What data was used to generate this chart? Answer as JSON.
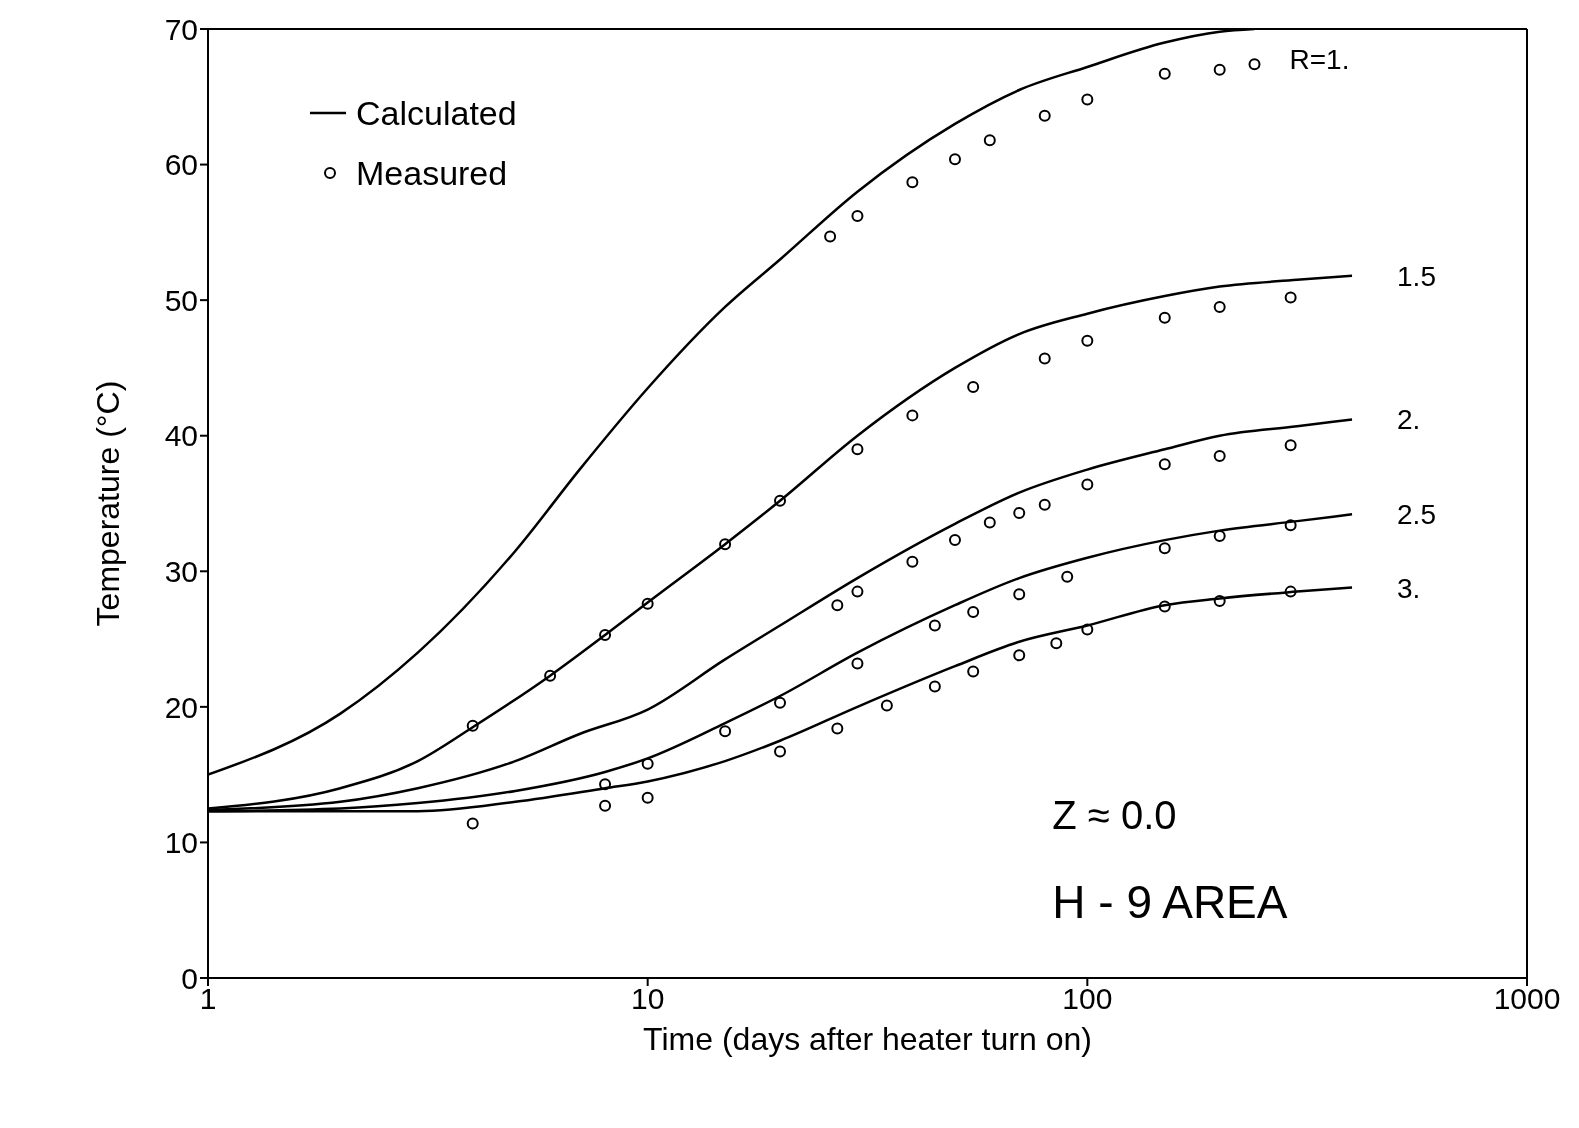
{
  "chart_data": {
    "type": "line",
    "xlabel": "Time (days after heater turn on)",
    "ylabel": "Temperature (°C)",
    "log": "x",
    "xlim": [
      1,
      1000
    ],
    "xticks": [
      1,
      10,
      100,
      1000
    ],
    "ylim": [
      0,
      70
    ],
    "yticks": [
      0,
      10,
      20,
      30,
      40,
      50,
      60,
      70
    ],
    "legend": "top left",
    "line_style": "solid",
    "series": [
      {
        "name": "R=1.",
        "color": "#000000",
        "x": [
          1,
          2,
          3,
          5,
          7,
          10,
          15,
          20,
          30,
          50,
          70,
          100,
          150,
          200,
          240
        ],
        "values": [
          15,
          19.5,
          24,
          31.5,
          37.5,
          43.5,
          49.5,
          53,
          58,
          63,
          65.5,
          67.2,
          69,
          69.8,
          70
        ]
      },
      {
        "name": "1.5",
        "color": "#000000",
        "x": [
          1,
          2,
          3,
          4,
          6,
          8,
          10,
          15,
          20,
          30,
          50,
          70,
          100,
          150,
          200,
          300,
          400
        ],
        "values": [
          12.5,
          14,
          16,
          18.5,
          22.3,
          25.3,
          27.7,
          32,
          35.2,
          40,
          45,
          47.5,
          49,
          50.3,
          51,
          51.5,
          51.8
        ]
      },
      {
        "name": "2.",
        "color": "#000000",
        "x": [
          1,
          2,
          3,
          5,
          7,
          10,
          15,
          20,
          30,
          50,
          70,
          100,
          150,
          200,
          300,
          400
        ],
        "values": [
          12.4,
          13,
          14,
          16,
          18,
          19.8,
          23.5,
          26,
          29.5,
          33.5,
          35.8,
          37.5,
          39,
          40,
          40.7,
          41.2
        ]
      },
      {
        "name": "2.5",
        "color": "#000000",
        "x": [
          1,
          2,
          3,
          5,
          8,
          10,
          15,
          20,
          30,
          50,
          70,
          100,
          150,
          200,
          300,
          400
        ],
        "values": [
          12.3,
          12.5,
          12.9,
          13.8,
          15.2,
          16.2,
          18.8,
          20.8,
          24,
          27.5,
          29.5,
          31,
          32.3,
          33,
          33.7,
          34.2
        ]
      },
      {
        "name": "3.",
        "color": "#000000",
        "x": [
          1,
          3,
          5,
          8,
          10,
          15,
          20,
          30,
          50,
          70,
          100,
          150,
          200,
          300,
          400
        ],
        "values": [
          12.3,
          12.3,
          13,
          14,
          14.5,
          16,
          17.5,
          20,
          23,
          24.8,
          26,
          27.5,
          28,
          28.5,
          28.8
        ]
      },
      {
        "name": "Measured",
        "type": "scatter",
        "color": "#000000",
        "marker": "circle",
        "x": [
          26,
          30,
          40,
          50,
          60,
          80,
          100,
          150,
          200,
          240
        ],
        "values": [
          54.7,
          56.2,
          58.7,
          60.4,
          61.8,
          63.6,
          64.8,
          66.7,
          67,
          67.4
        ]
      },
      {
        "type": "scatter",
        "color": "#000000",
        "marker": "circle",
        "x": [
          4,
          6,
          8,
          10,
          15,
          20,
          30,
          40,
          55,
          80,
          100,
          150,
          200,
          290
        ],
        "values": [
          18.6,
          22.3,
          25.3,
          27.6,
          32,
          35.2,
          39,
          41.5,
          43.6,
          45.7,
          47,
          48.7,
          49.5,
          50.2
        ]
      },
      {
        "type": "scatter",
        "color": "#000000",
        "marker": "circle",
        "x": [
          27,
          30,
          40,
          50,
          60,
          70,
          80,
          100,
          150,
          200,
          290
        ],
        "values": [
          27.5,
          28.5,
          30.7,
          32.3,
          33.6,
          34.3,
          34.9,
          36.4,
          37.9,
          38.5,
          39.3
        ]
      },
      {
        "type": "scatter",
        "color": "#000000",
        "marker": "circle",
        "x": [
          8,
          10,
          15,
          20,
          30,
          45,
          55,
          70,
          90,
          150,
          200,
          290
        ],
        "values": [
          14.3,
          15.8,
          18.2,
          20.3,
          23.2,
          26,
          27,
          28.3,
          29.6,
          31.7,
          32.6,
          33.4
        ]
      },
      {
        "type": "scatter",
        "color": "#000000",
        "marker": "circle",
        "x": [
          4,
          8,
          10,
          20,
          27,
          35,
          45,
          55,
          70,
          85,
          100,
          150,
          200,
          290
        ],
        "values": [
          11.4,
          12.7,
          13.3,
          16.7,
          18.4,
          20.1,
          21.5,
          22.6,
          23.8,
          24.7,
          25.7,
          27.4,
          27.8,
          28.5
        ]
      }
    ],
    "annotations": [
      "Calculated",
      "Z ≈ 0.0",
      "H - 9 AREA"
    ]
  }
}
